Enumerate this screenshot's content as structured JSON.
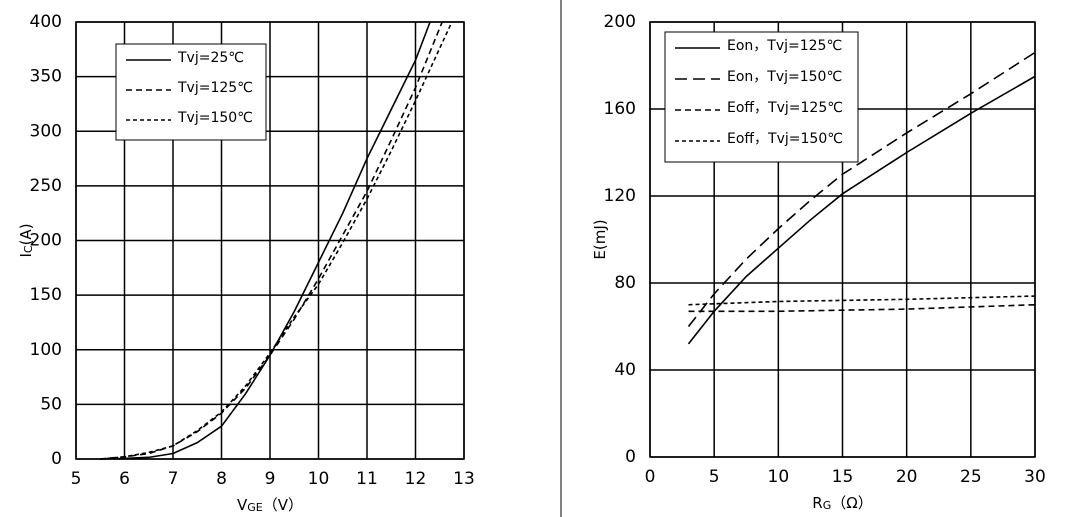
{
  "chart_data": [
    {
      "type": "line",
      "xlabel": [
        "V",
        "GE",
        "（V）"
      ],
      "ylabel": [
        "I",
        "C",
        "(A)"
      ],
      "xlim": [
        5,
        13
      ],
      "xticks": [
        5,
        6,
        7,
        8,
        9,
        10,
        11,
        12,
        13
      ],
      "ylim": [
        0,
        400
      ],
      "yticks": [
        0,
        50,
        100,
        150,
        200,
        250,
        300,
        350,
        400
      ],
      "grid": true,
      "legend": "upper left",
      "series": [
        {
          "name": "Tvj=25℃",
          "color": "#000000",
          "dash": "solid",
          "x": [
            5.5,
            6,
            6.5,
            7,
            7.5,
            8,
            8.5,
            9,
            9.5,
            10,
            10.5,
            11,
            11.5,
            12,
            12.3
          ],
          "values": [
            0,
            0.5,
            1.5,
            5,
            15,
            30,
            60,
            95,
            135,
            180,
            225,
            275,
            320,
            365,
            400
          ]
        },
        {
          "name": "Tvj=125℃",
          "color": "#000000",
          "dash": "dashed",
          "x": [
            5.5,
            6,
            6.5,
            7,
            7.5,
            8,
            8.5,
            9,
            9.5,
            10,
            10.5,
            11,
            11.5,
            12,
            12.55
          ],
          "values": [
            0,
            2,
            5,
            12,
            25,
            42,
            65,
            95,
            128,
            165,
            205,
            245,
            292,
            340,
            400
          ]
        },
        {
          "name": "Tvj=150℃",
          "color": "#000000",
          "dash": "dotted",
          "x": [
            5.5,
            6,
            6.5,
            7,
            7.5,
            8,
            8.5,
            9,
            9.5,
            10,
            10.5,
            11,
            11.5,
            12,
            12.75
          ],
          "values": [
            0,
            2,
            6,
            12,
            26,
            43,
            67,
            97,
            130,
            160,
            198,
            238,
            282,
            328,
            400
          ]
        }
      ]
    },
    {
      "type": "line",
      "xlabel": [
        "R",
        "G",
        "（Ω）"
      ],
      "ylabel": [
        "E(mJ)"
      ],
      "xlim": [
        0,
        30
      ],
      "xticks": [
        0,
        5,
        10,
        15,
        20,
        25,
        30
      ],
      "ylim": [
        0,
        200
      ],
      "yticks": [
        0,
        40,
        80,
        120,
        160,
        200
      ],
      "grid": true,
      "legend": "upper left",
      "series": [
        {
          "name": "Eon，Tvj=125℃",
          "color": "#000000",
          "dash": "solid",
          "x": [
            3,
            5,
            7.5,
            10,
            12.5,
            15,
            20,
            25,
            30
          ],
          "values": [
            52,
            67,
            83,
            96,
            109,
            121,
            140,
            158,
            175
          ]
        },
        {
          "name": "Eon，Tvj=150℃",
          "color": "#000000",
          "dash": "longdash",
          "x": [
            3,
            5,
            7.5,
            10,
            12.5,
            15,
            20,
            25,
            30
          ],
          "values": [
            60,
            75,
            91,
            105,
            118,
            130,
            149,
            167,
            186
          ]
        },
        {
          "name": "Eoff，Tvj=125℃",
          "color": "#000000",
          "dash": "dashed",
          "x": [
            3,
            10,
            20,
            30
          ],
          "values": [
            67,
            67,
            68,
            70
          ]
        },
        {
          "name": "Eoff，Tvj=150℃",
          "color": "#000000",
          "dash": "dotted",
          "x": [
            3,
            10,
            20,
            30
          ],
          "values": [
            70,
            71.5,
            72.5,
            74
          ]
        }
      ]
    }
  ]
}
